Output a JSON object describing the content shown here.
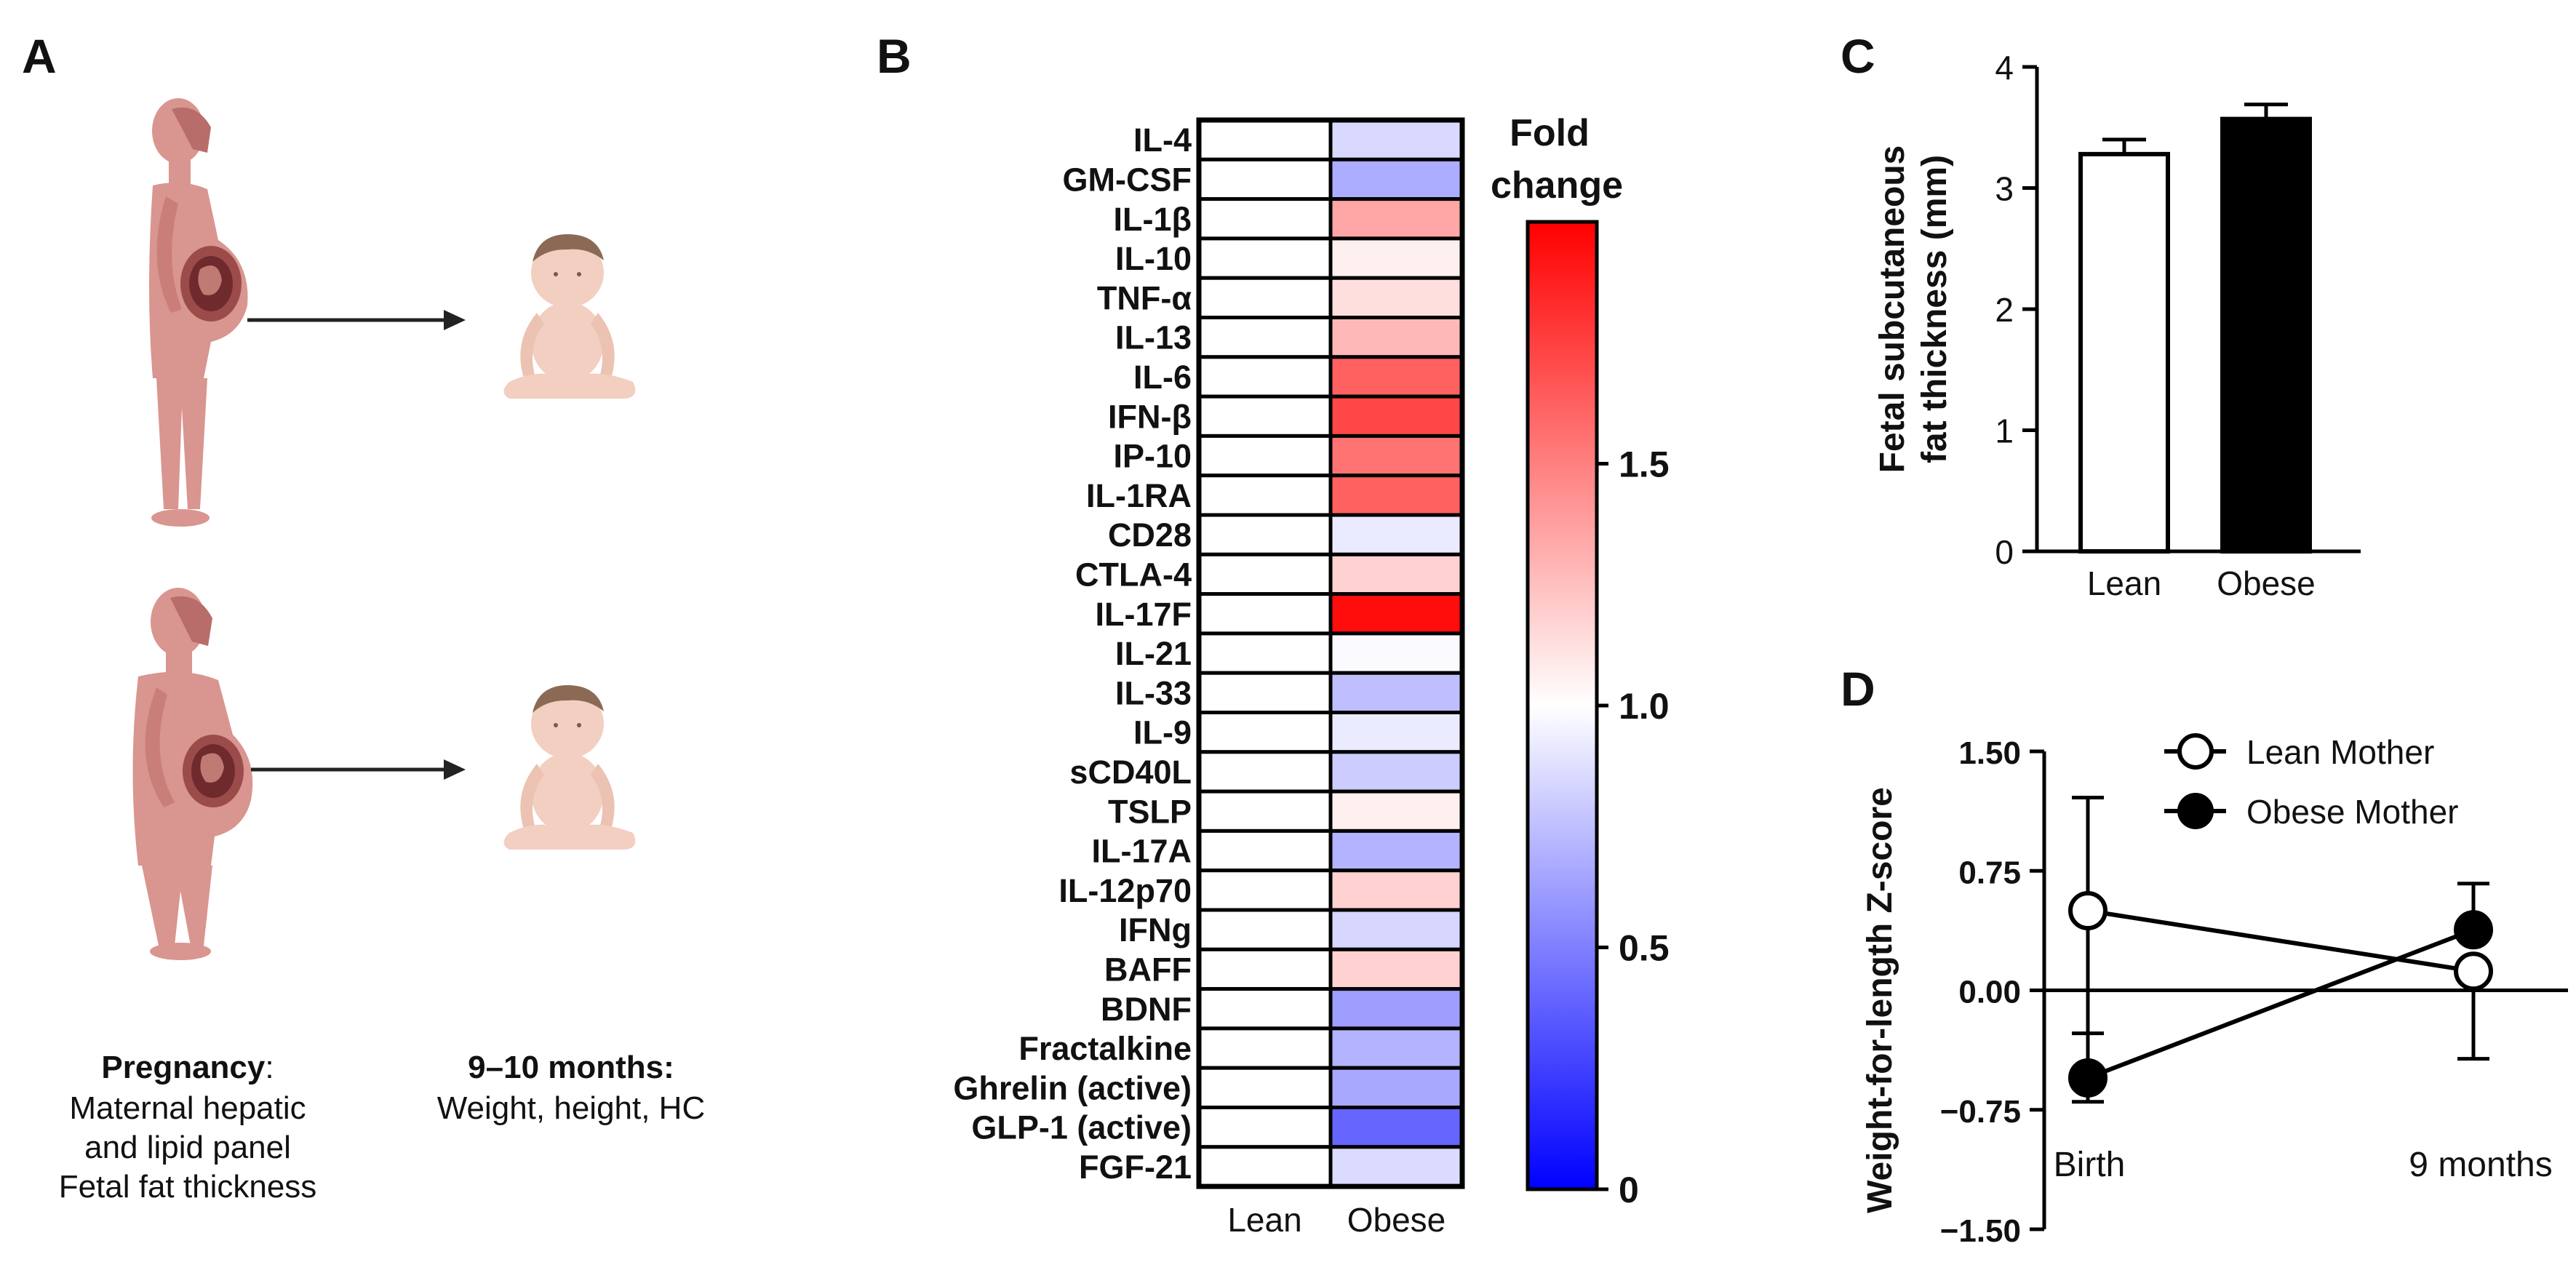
{
  "figure": {
    "panel_labels": [
      "A",
      "B",
      "C",
      "D"
    ]
  },
  "panel_a": {
    "left_caption": {
      "title": "Pregnancy",
      "title_suffix": ":",
      "lines": [
        "Maternal hepatic",
        "and lipid panel",
        "Fetal fat thickness"
      ]
    },
    "right_caption": {
      "title": "9–10 months:",
      "lines": [
        "Weight, height, HC"
      ]
    },
    "icons": [
      "pregnant-woman-lean",
      "pregnant-woman-obese",
      "infant",
      "infant",
      "arrow-right",
      "arrow-right"
    ],
    "colors": {
      "mother": "#d9958f",
      "mother_dark": "#b86d6a",
      "infant": "#f2cfc0",
      "infant_hair": "#8a6a55",
      "arrow": "#222222"
    }
  },
  "chart_data": [
    {
      "panel": "B",
      "type": "heatmap",
      "title": "",
      "colorbar_title": [
        "Fold",
        "change"
      ],
      "colorbar_range": [
        0,
        2
      ],
      "colorbar_ticks": [
        0,
        0.5,
        1.0,
        1.5
      ],
      "colorbar_tick_labels": [
        "0",
        "0.5",
        "1.0",
        "1.5"
      ],
      "colors": {
        "low": "#0000ff",
        "mid": "#ffffff",
        "high": "#ff0000"
      },
      "columns": [
        "Lean",
        "Obese"
      ],
      "rows": [
        "IL-4",
        "GM-CSF",
        "IL-1β",
        "IL-10",
        "TNF-α",
        "IL-13",
        "IL-6",
        "IFN-β",
        "IP-10",
        "IL-1RA",
        "CD28",
        "CTLA-4",
        "IL-17F",
        "IL-21",
        "IL-33",
        "IL-9",
        "sCD40L",
        "TSLP",
        "IL-17A",
        "IL-12p70",
        "IFNg",
        "BAFF",
        "BDNF",
        "Fractalkine",
        "Ghrelin (active)",
        "GLP-1 (active)",
        "FGF-21"
      ],
      "values": [
        [
          1.0,
          0.85
        ],
        [
          1.0,
          0.68
        ],
        [
          1.0,
          1.35
        ],
        [
          1.0,
          1.06
        ],
        [
          1.0,
          1.13
        ],
        [
          1.0,
          1.28
        ],
        [
          1.0,
          1.62
        ],
        [
          1.0,
          1.72
        ],
        [
          1.0,
          1.55
        ],
        [
          1.0,
          1.62
        ],
        [
          1.0,
          0.92
        ],
        [
          1.0,
          1.18
        ],
        [
          1.0,
          1.95
        ],
        [
          1.0,
          0.98
        ],
        [
          1.0,
          0.75
        ],
        [
          1.0,
          0.92
        ],
        [
          1.0,
          0.8
        ],
        [
          1.0,
          1.06
        ],
        [
          1.0,
          0.7
        ],
        [
          1.0,
          1.18
        ],
        [
          1.0,
          0.84
        ],
        [
          1.0,
          1.18
        ],
        [
          1.0,
          0.62
        ],
        [
          1.0,
          0.7
        ],
        [
          1.0,
          0.66
        ],
        [
          1.0,
          0.4
        ],
        [
          1.0,
          0.86
        ]
      ]
    },
    {
      "panel": "C",
      "type": "bar",
      "title": "",
      "categories": [
        "Lean",
        "Obese"
      ],
      "values": [
        3.28,
        3.57
      ],
      "errors": [
        0.12,
        0.12
      ],
      "fill_colors": [
        "#ffffff",
        "#000000"
      ],
      "ylabel": [
        "Fetal subcutaneous",
        "fat thickness (mm)"
      ],
      "xlabel": "",
      "ylim": [
        0,
        4
      ],
      "yticks": [
        0,
        1,
        2,
        3,
        4
      ],
      "ytick_labels": [
        "0",
        "1",
        "2",
        "3",
        "4"
      ]
    },
    {
      "panel": "D",
      "type": "line",
      "title": "",
      "categories": [
        "Birth",
        "9 months"
      ],
      "series": [
        {
          "name": "Lean Mother",
          "values": [
            0.5,
            0.12
          ],
          "error_low": [
            -0.7,
            -0.43
          ],
          "error_high": [
            1.21,
            0.12
          ],
          "marker": "open-circle"
        },
        {
          "name": "Obese Mother",
          "values": [
            -0.55,
            0.38
          ],
          "error_low": [
            -0.55,
            0.38
          ],
          "error_high": [
            -0.27,
            0.67
          ],
          "marker": "filled-circle"
        }
      ],
      "ylabel": "Weight-for-length Z-score",
      "xlabel": "",
      "ylim": [
        -1.5,
        1.5
      ],
      "yticks": [
        1.5,
        0.75,
        0.0,
        -0.75,
        -1.5
      ],
      "ytick_labels": [
        "1.50",
        "0.75",
        "0.00",
        "−0.75",
        "−1.50"
      ],
      "legend_position": "top-right"
    }
  ]
}
